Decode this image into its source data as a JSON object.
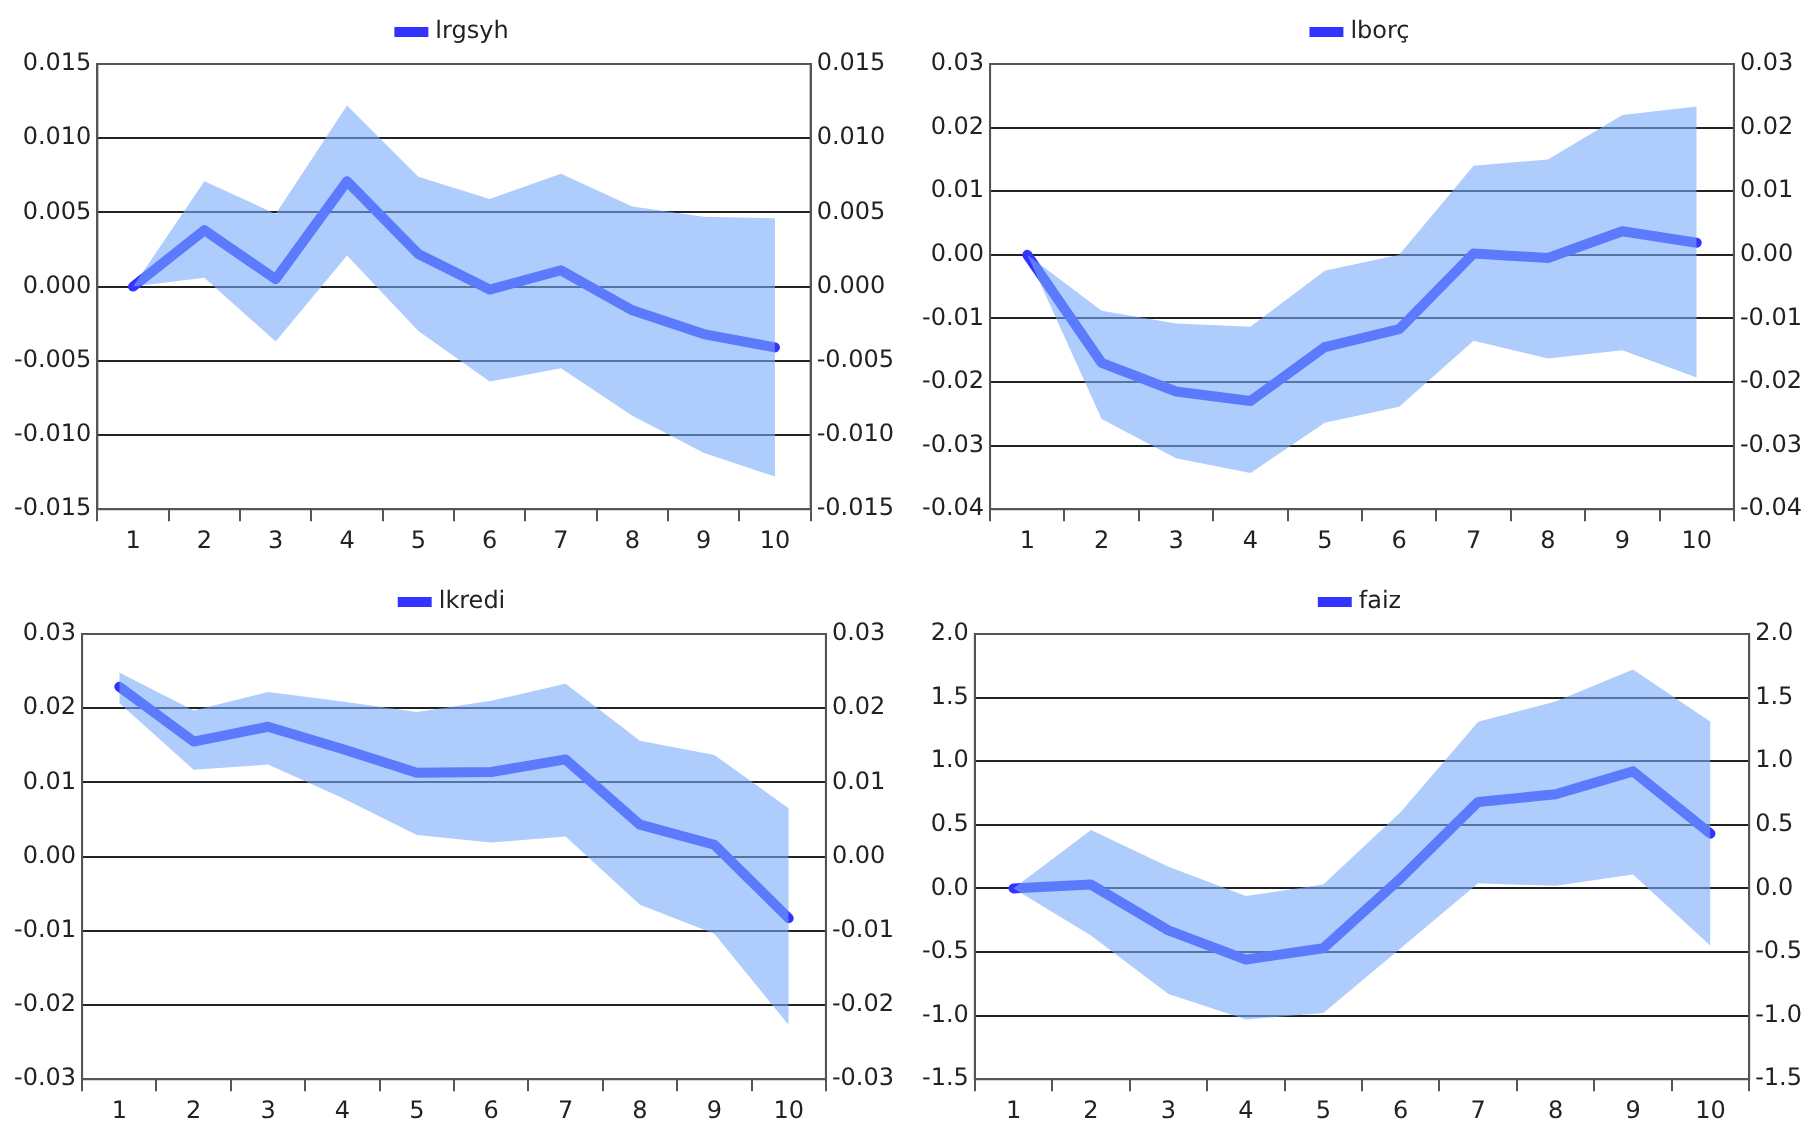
{
  "chart_data": [
    {
      "type": "line",
      "categories": [
        "1",
        "2",
        "3",
        "4",
        "5",
        "6",
        "7",
        "8",
        "9",
        "10"
      ],
      "series": [
        {
          "name": "lrgsyh",
          "color": "#3333ff",
          "values": [
            0,
            0.0038,
            0.0005,
            0.0071,
            0.0022,
            -0.0002,
            0.0011,
            -0.0016,
            -0.0032,
            -0.0041
          ],
          "upper": [
            0,
            0.0071,
            0.0049,
            0.0122,
            0.0074,
            0.0059,
            0.0076,
            0.0054,
            0.0047,
            0.0046
          ],
          "lower": [
            0,
            0.0006,
            -0.0037,
            0.0021,
            -0.003,
            -0.0064,
            -0.0055,
            -0.0087,
            -0.0112,
            -0.0128
          ]
        }
      ],
      "ylim": [
        -0.015,
        0.015
      ],
      "yticks": [
        {
          "value": -0.015,
          "label": "-0.015"
        },
        {
          "value": -0.01,
          "label": "-0.010"
        },
        {
          "value": -0.005,
          "label": "-0.005"
        },
        {
          "value": 0,
          "label": "0.000"
        },
        {
          "value": 0.005,
          "label": "0.005"
        },
        {
          "value": 0.01,
          "label": "0.010"
        },
        {
          "value": 0.015,
          "label": "0.015"
        }
      ],
      "y2lim": [
        -0.015,
        0.015
      ],
      "y2ticks": [
        {
          "value": -0.015,
          "label": "-0.015"
        },
        {
          "value": -0.01,
          "label": "-0.010"
        },
        {
          "value": -0.005,
          "label": "-0.005"
        },
        {
          "value": 0,
          "label": "0.000"
        },
        {
          "value": 0.005,
          "label": "0.005"
        },
        {
          "value": 0.01,
          "label": "0.010"
        },
        {
          "value": 0.015,
          "label": "0.015"
        }
      ],
      "grid": "y",
      "legend": "top",
      "marker": "none"
    },
    {
      "type": "line",
      "categories": [
        "1",
        "2",
        "3",
        "4",
        "5",
        "6",
        "7",
        "8",
        "9",
        "10"
      ],
      "series": [
        {
          "name": "lborç",
          "color": "#3333ff",
          "values": [
            0,
            -0.017,
            -0.0215,
            -0.023,
            -0.0145,
            -0.0117,
            0.0002,
            -0.0005,
            0.0037,
            0.0019
          ],
          "upper": [
            0,
            -0.0088,
            -0.0108,
            -0.0113,
            -0.0025,
            0.0,
            0.014,
            0.015,
            0.022,
            0.0233
          ],
          "lower": [
            0,
            -0.0258,
            -0.032,
            -0.0343,
            -0.0264,
            -0.0239,
            -0.0135,
            -0.0163,
            -0.015,
            -0.0193
          ]
        }
      ],
      "ylim": [
        -0.04,
        0.03
      ],
      "yticks": [
        {
          "value": -0.04,
          "label": "-0.04"
        },
        {
          "value": -0.03,
          "label": "-0.03"
        },
        {
          "value": -0.02,
          "label": "-0.02"
        },
        {
          "value": -0.01,
          "label": "-0.01"
        },
        {
          "value": 0,
          "label": "0.00"
        },
        {
          "value": 0.01,
          "label": "0.01"
        },
        {
          "value": 0.02,
          "label": "0.02"
        },
        {
          "value": 0.03,
          "label": "0.03"
        }
      ],
      "y2lim": [
        -0.04,
        0.03
      ],
      "y2ticks": [
        {
          "value": -0.04,
          "label": "-0.04"
        },
        {
          "value": -0.03,
          "label": "-0.03"
        },
        {
          "value": -0.02,
          "label": "-0.02"
        },
        {
          "value": -0.01,
          "label": "-0.01"
        },
        {
          "value": 0,
          "label": "0.00"
        },
        {
          "value": 0.01,
          "label": "0.01"
        },
        {
          "value": 0.02,
          "label": "0.02"
        },
        {
          "value": 0.03,
          "label": "0.03"
        }
      ],
      "grid": "y",
      "legend": "top",
      "marker": "none"
    },
    {
      "type": "line",
      "categories": [
        "1",
        "2",
        "3",
        "4",
        "5",
        "6",
        "7",
        "8",
        "9",
        "10"
      ],
      "series": [
        {
          "name": "lkredi",
          "color": "#3333ff",
          "values": [
            0.0229,
            0.0155,
            0.0175,
            0.0145,
            0.0113,
            0.0114,
            0.0131,
            0.0043,
            0.0016,
            -0.0083
          ],
          "upper": [
            0.0248,
            0.0197,
            0.0222,
            0.0209,
            0.0195,
            0.021,
            0.0233,
            0.0156,
            0.0137,
            0.0065
          ],
          "lower": [
            0.0207,
            0.0117,
            0.0124,
            0.0079,
            0.0029,
            0.0019,
            0.0027,
            -0.0065,
            -0.0104,
            -0.0227
          ]
        }
      ],
      "ylim": [
        -0.03,
        0.03
      ],
      "yticks": [
        {
          "value": -0.03,
          "label": "-0.03"
        },
        {
          "value": -0.02,
          "label": "-0.02"
        },
        {
          "value": -0.01,
          "label": "-0.01"
        },
        {
          "value": 0,
          "label": "0.00"
        },
        {
          "value": 0.01,
          "label": "0.01"
        },
        {
          "value": 0.02,
          "label": "0.02"
        },
        {
          "value": 0.03,
          "label": "0.03"
        }
      ],
      "y2lim": [
        -0.03,
        0.03
      ],
      "y2ticks": [
        {
          "value": -0.03,
          "label": "-0.03"
        },
        {
          "value": -0.02,
          "label": "-0.02"
        },
        {
          "value": -0.01,
          "label": "-0.01"
        },
        {
          "value": 0,
          "label": "0.00"
        },
        {
          "value": 0.01,
          "label": "0.01"
        },
        {
          "value": 0.02,
          "label": "0.02"
        },
        {
          "value": 0.03,
          "label": "0.03"
        }
      ],
      "grid": "y",
      "legend": "top",
      "marker": "none"
    },
    {
      "type": "line",
      "categories": [
        "1",
        "2",
        "3",
        "4",
        "5",
        "6",
        "7",
        "8",
        "9",
        "10"
      ],
      "series": [
        {
          "name": "faiz",
          "color": "#3333ff",
          "values": [
            0,
            0.03,
            -0.33,
            -0.56,
            -0.47,
            0.08,
            0.68,
            0.74,
            0.92,
            0.43
          ],
          "upper": [
            0,
            0.46,
            0.17,
            -0.06,
            0.03,
            0.6,
            1.31,
            1.47,
            1.72,
            1.31
          ],
          "lower": [
            0,
            -0.37,
            -0.83,
            -1.03,
            -0.98,
            -0.47,
            0.04,
            0.02,
            0.11,
            -0.45
          ]
        }
      ],
      "ylim": [
        -1.5,
        2.0
      ],
      "yticks": [
        {
          "value": -1.5,
          "label": "-1.5"
        },
        {
          "value": -1,
          "label": "-1.0"
        },
        {
          "value": -0.5,
          "label": "-0.5"
        },
        {
          "value": 0,
          "label": "0.0"
        },
        {
          "value": 0.5,
          "label": "0.5"
        },
        {
          "value": 1,
          "label": "1.0"
        },
        {
          "value": 1.5,
          "label": "1.5"
        },
        {
          "value": 2,
          "label": "2.0"
        }
      ],
      "y2lim": [
        -1.5,
        2.0
      ],
      "y2ticks": [
        {
          "value": -1.5,
          "label": "-1.5"
        },
        {
          "value": -1,
          "label": "-1.0"
        },
        {
          "value": -0.5,
          "label": "-0.5"
        },
        {
          "value": 0,
          "label": "0.0"
        },
        {
          "value": 0.5,
          "label": "0.5"
        },
        {
          "value": 1,
          "label": "1.0"
        },
        {
          "value": 1.5,
          "label": "1.5"
        },
        {
          "value": 2,
          "label": "2.0"
        }
      ],
      "grid": "y",
      "legend": "top",
      "marker": "none"
    }
  ]
}
